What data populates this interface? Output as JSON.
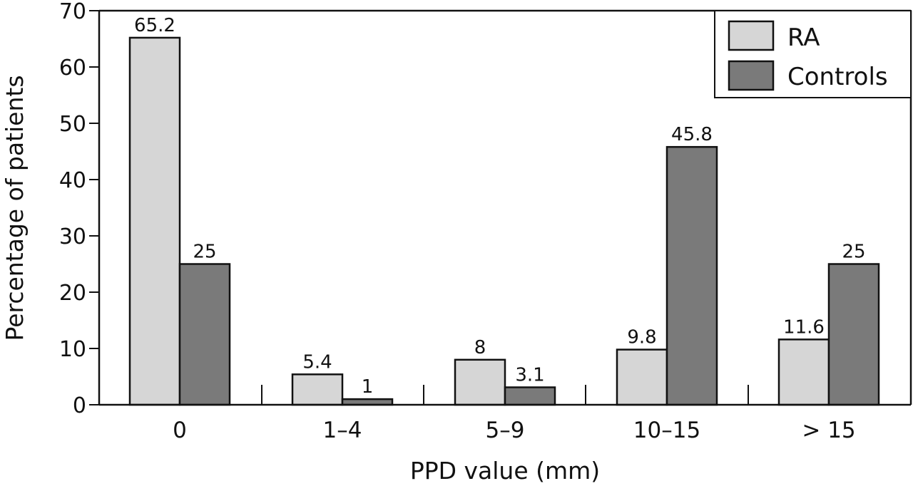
{
  "chart_data": {
    "type": "bar",
    "xlabel": "PPD value (mm)",
    "ylabel": "Percentage of patients",
    "ylim": [
      0,
      70
    ],
    "yticks": [
      0,
      10,
      20,
      30,
      40,
      50,
      60,
      70
    ],
    "categories": [
      "0",
      "1–4",
      "5–9",
      "10–15",
      "> 15"
    ],
    "series": [
      {
        "name": "RA",
        "color": "#d6d6d6",
        "values": [
          65.2,
          5.4,
          8,
          9.8,
          11.6
        ],
        "labels": [
          "65.2",
          "5.4",
          "8",
          "9.8",
          "11.6"
        ]
      },
      {
        "name": "Controls",
        "color": "#7a7a7a",
        "values": [
          25,
          1,
          3.1,
          45.8,
          25
        ],
        "labels": [
          "25",
          "1",
          "3.1",
          "45.8",
          "25"
        ]
      }
    ],
    "grid": false,
    "legend_position": "top-right"
  }
}
